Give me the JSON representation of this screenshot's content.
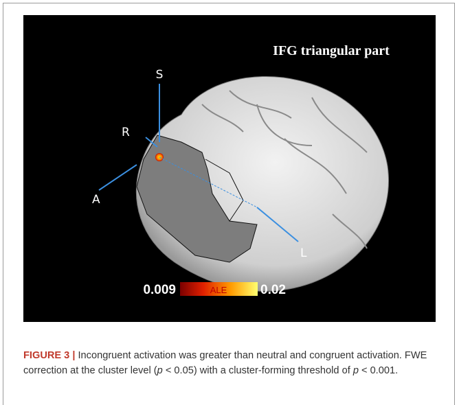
{
  "figure": {
    "title": "IFG triangular part",
    "axis_labels": {
      "S": "S",
      "R": "R",
      "A": "A",
      "L": "L"
    },
    "colorbar": {
      "min": "0.009",
      "label": "ALE",
      "max": "0.02"
    }
  },
  "caption": {
    "label": "FIGURE 3 |",
    "parts": [
      " Incongruent activation was greater than neutral and congruent activation. FWE correction at the cluster level (",
      "p",
      " < 0.05) with a cluster-forming threshold of ",
      "p",
      " < 0.001."
    ]
  }
}
